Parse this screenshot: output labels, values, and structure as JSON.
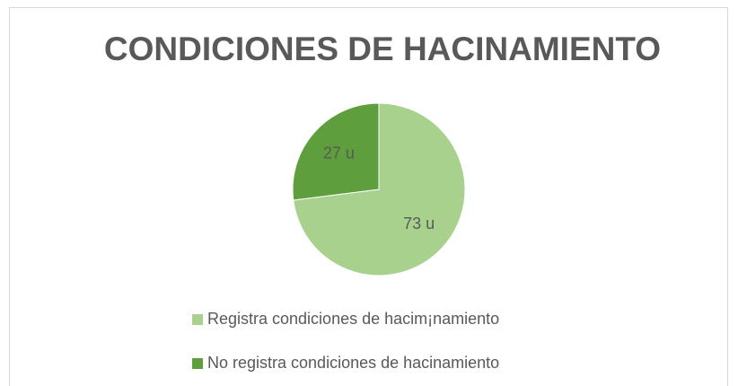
{
  "chart_data": {
    "type": "pie",
    "title": "CONDICIONES DE HACINAMIENTO",
    "categories": [
      "Registra  condiciones de hacim¡namiento",
      "No registra condiciones de hacinamiento"
    ],
    "values": [
      73,
      27
    ],
    "value_labels": [
      "73 u",
      "27 u"
    ],
    "colors": [
      "#a9d18e",
      "#5e9e3c"
    ],
    "legend": "bottom"
  }
}
